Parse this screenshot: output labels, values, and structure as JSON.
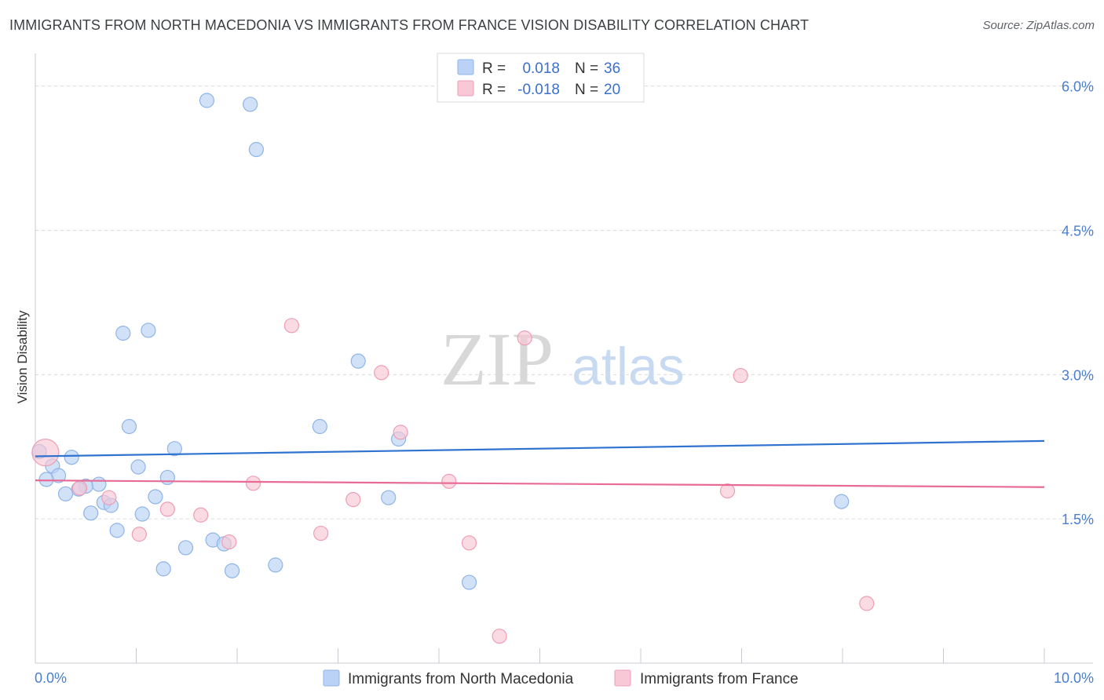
{
  "title": "IMMIGRANTS FROM NORTH MACEDONIA VS IMMIGRANTS FROM FRANCE VISION DISABILITY CORRELATION CHART",
  "source": "Source: ZipAtlas.com",
  "watermark": {
    "zip": "ZIP",
    "atlas": "atlas"
  },
  "colors": {
    "blue_fill": "#b9d2f5",
    "blue_stroke": "#8fb4e6",
    "blue_line": "#2f72d0",
    "pink_fill": "#f8c8d6",
    "pink_stroke": "#ee9db4",
    "pink_line": "#e86b95",
    "tick_text": "#4a7fd0",
    "grid": "#d7dbe0"
  },
  "legend": {
    "rows": [
      {
        "r_label": "R =",
        "r_value": "0.018",
        "n_label": "N =",
        "n_value": "36",
        "color": "blue"
      },
      {
        "r_label": "R =",
        "r_value": "-0.018",
        "n_label": "N =",
        "n_value": "20",
        "color": "pink"
      }
    ]
  },
  "chart_data": {
    "type": "scatter",
    "title": "IMMIGRANTS FROM NORTH MACEDONIA VS IMMIGRANTS FROM FRANCE VISION DISABILITY CORRELATION CHART",
    "xlabel": "",
    "ylabel": "Vision Disability",
    "xlim": [
      0,
      10
    ],
    "ylim": [
      0,
      6.25
    ],
    "x_tick_labels": [
      "0.0%",
      "10.0%"
    ],
    "y_ticks": [
      1.5,
      3.0,
      4.5,
      6.0
    ],
    "y_tick_labels": [
      "1.5%",
      "3.0%",
      "4.5%",
      "6.0%"
    ],
    "series": [
      {
        "name": "Immigrants from North Macedonia",
        "color": "blue",
        "trend": {
          "x": [
            0,
            10
          ],
          "y": [
            2.15,
            2.31
          ]
        },
        "points": [
          {
            "x": 1.7,
            "y": 5.85
          },
          {
            "x": 2.13,
            "y": 5.81
          },
          {
            "x": 2.19,
            "y": 5.34
          },
          {
            "x": 0.87,
            "y": 3.43
          },
          {
            "x": 1.12,
            "y": 3.46
          },
          {
            "x": 3.2,
            "y": 3.14
          },
          {
            "x": 0.93,
            "y": 2.46
          },
          {
            "x": 2.82,
            "y": 2.46
          },
          {
            "x": 1.38,
            "y": 2.23
          },
          {
            "x": 3.6,
            "y": 2.33
          },
          {
            "x": 0.36,
            "y": 2.14
          },
          {
            "x": 0.17,
            "y": 2.05
          },
          {
            "x": 1.02,
            "y": 2.04
          },
          {
            "x": 0.23,
            "y": 1.95
          },
          {
            "x": 0.11,
            "y": 1.91
          },
          {
            "x": 1.31,
            "y": 1.93
          },
          {
            "x": 0.63,
            "y": 1.86
          },
          {
            "x": 0.5,
            "y": 1.84
          },
          {
            "x": 0.43,
            "y": 1.81
          },
          {
            "x": 0.3,
            "y": 1.76
          },
          {
            "x": 1.19,
            "y": 1.73
          },
          {
            "x": 3.5,
            "y": 1.72
          },
          {
            "x": 7.99,
            "y": 1.68
          },
          {
            "x": 0.68,
            "y": 1.67
          },
          {
            "x": 0.75,
            "y": 1.64
          },
          {
            "x": 0.55,
            "y": 1.56
          },
          {
            "x": 1.06,
            "y": 1.55
          },
          {
            "x": 0.81,
            "y": 1.38
          },
          {
            "x": 1.76,
            "y": 1.28
          },
          {
            "x": 1.87,
            "y": 1.24
          },
          {
            "x": 1.49,
            "y": 1.2
          },
          {
            "x": 2.38,
            "y": 1.02
          },
          {
            "x": 1.27,
            "y": 0.98
          },
          {
            "x": 1.95,
            "y": 0.96
          },
          {
            "x": 4.3,
            "y": 0.84
          },
          {
            "x": 0.04,
            "y": 2.2
          }
        ]
      },
      {
        "name": "Immigrants from France",
        "color": "pink",
        "trend": {
          "x": [
            0,
            10
          ],
          "y": [
            1.9,
            1.83
          ]
        },
        "points": [
          {
            "x": 2.54,
            "y": 3.51
          },
          {
            "x": 4.85,
            "y": 3.38
          },
          {
            "x": 3.43,
            "y": 3.02
          },
          {
            "x": 6.99,
            "y": 2.99
          },
          {
            "x": 3.62,
            "y": 2.4
          },
          {
            "x": 0.1,
            "y": 2.19
          },
          {
            "x": 2.16,
            "y": 1.87
          },
          {
            "x": 4.1,
            "y": 1.89
          },
          {
            "x": 0.44,
            "y": 1.82
          },
          {
            "x": 6.86,
            "y": 1.79
          },
          {
            "x": 0.73,
            "y": 1.72
          },
          {
            "x": 3.15,
            "y": 1.7
          },
          {
            "x": 1.31,
            "y": 1.6
          },
          {
            "x": 1.64,
            "y": 1.54
          },
          {
            "x": 1.03,
            "y": 1.34
          },
          {
            "x": 2.83,
            "y": 1.35
          },
          {
            "x": 1.92,
            "y": 1.26
          },
          {
            "x": 4.3,
            "y": 1.25
          },
          {
            "x": 8.24,
            "y": 0.62
          },
          {
            "x": 4.6,
            "y": 0.28
          }
        ]
      }
    ]
  }
}
